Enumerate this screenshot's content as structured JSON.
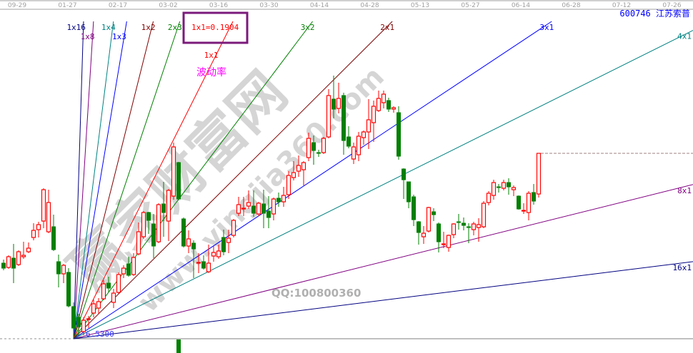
{
  "stock": {
    "code_name": "600746 江苏索普",
    "color": "#0000ff"
  },
  "annotation": {
    "box_label": "1x1=0.1904",
    "box_color": "#7b1a7b",
    "note": "波动率",
    "note_color": "#ff00ff",
    "origin_label": "6.5300",
    "qq": "QQ:100800360"
  },
  "watermark": {
    "cn": "赢家财富网",
    "url": "www.yingjia360.com"
  },
  "chart_data": {
    "type": "candlestick",
    "x_tick_labels": [
      "09-29",
      "01-27",
      "02-17",
      "03-02",
      "03-16",
      "03-30",
      "04-14",
      "04-28",
      "05-13",
      "05-27",
      "06-14",
      "06-28",
      "07-12",
      "07-26"
    ],
    "up_color": "#ff0000",
    "down_color": "#008000",
    "candles": [
      [
        8.65,
        8.75,
        8.45,
        8.51
      ],
      [
        8.53,
        8.87,
        8.49,
        8.83
      ],
      [
        8.79,
        9.19,
        8.09,
        8.51
      ],
      [
        8.61,
        9.01,
        8.57,
        8.97
      ],
      [
        8.83,
        9.25,
        8.77,
        8.87
      ],
      [
        8.97,
        9.23,
        8.93,
        9.07
      ],
      [
        9.37,
        9.77,
        9.29,
        9.57
      ],
      [
        9.59,
        9.81,
        9.37,
        9.73
      ],
      [
        9.83,
        10.75,
        9.63,
        10.71
      ],
      [
        9.53,
        10.71,
        9.49,
        10.35
      ],
      [
        9.67,
        10.01,
        8.99,
        9.03
      ],
      [
        8.69,
        8.89,
        7.97,
        8.35
      ],
      [
        8.35,
        8.63,
        8.09,
        8.59
      ],
      [
        8.39,
        8.51,
        7.41,
        7.45
      ],
      [
        7.43,
        7.55,
        6.53,
        6.83
      ],
      [
        7.13,
        7.23,
        6.63,
        6.87
      ],
      [
        6.73,
        7.13,
        6.63,
        7.05
      ],
      [
        7.07,
        7.17,
        6.83,
        7.09
      ],
      [
        7.25,
        7.63,
        7.13,
        7.51
      ],
      [
        7.39,
        7.67,
        7.23,
        7.57
      ],
      [
        7.65,
        8.17,
        7.61,
        8.07
      ],
      [
        8.09,
        8.27,
        7.83,
        7.95
      ],
      [
        7.55,
        7.93,
        7.39,
        7.81
      ],
      [
        7.83,
        8.39,
        7.79,
        8.33
      ],
      [
        8.35,
        8.59,
        8.23,
        8.51
      ],
      [
        8.63,
        8.83,
        8.27,
        8.31
      ],
      [
        8.33,
        8.93,
        8.29,
        8.81
      ],
      [
        8.91,
        9.79,
        8.87,
        9.53
      ],
      [
        9.39,
        10.11,
        9.33,
        10.07
      ],
      [
        10.07,
        10.09,
        9.47,
        9.85
      ],
      [
        9.75,
        10.03,
        8.79,
        9.13
      ],
      [
        9.25,
        10.33,
        9.21,
        10.29
      ],
      [
        10.31,
        10.93,
        9.39,
        10.07
      ],
      [
        9.83,
        10.73,
        9.27,
        10.69
      ],
      [
        10.53,
        12.03,
        10.43,
        11.91
      ],
      [
        11.47,
        11.49,
        10.41,
        10.45
      ],
      [
        9.89,
        9.93,
        9.09,
        9.13
      ],
      [
        9.13,
        9.57,
        8.93,
        9.33
      ],
      [
        9.21,
        9.29,
        8.23,
        9.05
      ],
      [
        8.67,
        8.93,
        8.37,
        8.67
      ],
      [
        8.69,
        8.87,
        8.47,
        8.51
      ],
      [
        8.41,
        9.17,
        8.37,
        8.65
      ],
      [
        8.85,
        9.13,
        8.69,
        8.95
      ],
      [
        8.83,
        9.17,
        8.77,
        8.99
      ],
      [
        9.37,
        9.59,
        8.87,
        8.97
      ],
      [
        9.23,
        9.59,
        8.93,
        9.35
      ],
      [
        9.43,
        9.89,
        9.37,
        9.85
      ],
      [
        10.05,
        10.51,
        9.97,
        10.29
      ],
      [
        10.19,
        10.51,
        9.97,
        10.19
      ],
      [
        10.25,
        10.69,
        10.17,
        10.35
      ],
      [
        10.25,
        10.69,
        9.95,
        10.05
      ],
      [
        10.03,
        10.37,
        9.97,
        10.33
      ],
      [
        10.31,
        10.71,
        9.63,
        10.05
      ],
      [
        10.11,
        10.53,
        9.63,
        9.93
      ],
      [
        10.03,
        10.49,
        9.85,
        10.45
      ],
      [
        10.47,
        10.63,
        10.23,
        10.37
      ],
      [
        10.37,
        10.79,
        10.23,
        10.55
      ],
      [
        10.57,
        11.23,
        10.45,
        11.11
      ],
      [
        11.05,
        11.51,
        10.97,
        11.19
      ],
      [
        11.23,
        11.67,
        11.07,
        11.39
      ],
      [
        11.27,
        11.51,
        10.83,
        11.47
      ],
      [
        11.61,
        12.31,
        11.51,
        12.15
      ],
      [
        12.03,
        12.23,
        11.41,
        11.81
      ],
      [
        11.75,
        11.83,
        11.63,
        11.74
      ],
      [
        11.75,
        12.19,
        11.71,
        12.15
      ],
      [
        12.19,
        13.53,
        12.15,
        13.35
      ],
      [
        13.25,
        13.91,
        12.71,
        12.97
      ],
      [
        12.99,
        13.71,
        12.85,
        13.27
      ],
      [
        13.35,
        13.43,
        11.69,
        12.09
      ],
      [
        12.19,
        12.49,
        11.87,
        11.93
      ],
      [
        11.57,
        12.03,
        11.43,
        11.91
      ],
      [
        11.69,
        12.33,
        11.51,
        12.21
      ],
      [
        12.17,
        12.37,
        11.97,
        12.33
      ],
      [
        12.33,
        13.25,
        11.85,
        12.67
      ],
      [
        12.59,
        13.21,
        12.05,
        13.05
      ],
      [
        12.93,
        13.49,
        12.89,
        13.27
      ],
      [
        13.15,
        13.49,
        12.99,
        13.39
      ],
      [
        13.21,
        13.29,
        12.89,
        12.97
      ],
      [
        12.97,
        13.05,
        12.87,
        13.01
      ],
      [
        12.87,
        13.05,
        11.55,
        11.65
      ],
      [
        11.29,
        11.31,
        10.45,
        10.99
      ],
      [
        10.93,
        10.93,
        10.19,
        10.37
      ],
      [
        10.51,
        10.57,
        9.69,
        9.87
      ],
      [
        9.81,
        9.83,
        9.17,
        9.51
      ],
      [
        9.39,
        9.69,
        9.19,
        9.49
      ],
      [
        9.55,
        10.23,
        9.51,
        10.21
      ],
      [
        10.09,
        10.19,
        9.83,
        10.01
      ],
      [
        9.75,
        9.79,
        8.95,
        9.25
      ],
      [
        9.19,
        9.53,
        9.07,
        9.19
      ],
      [
        9.09,
        9.45,
        8.97,
        9.43
      ],
      [
        9.45,
        9.77,
        9.35,
        9.75
      ],
      [
        9.81,
        10.03,
        9.59,
        9.8
      ],
      [
        9.77,
        9.93,
        9.57,
        9.71
      ],
      [
        9.67,
        9.77,
        9.21,
        9.66
      ],
      [
        9.59,
        9.81,
        9.43,
        9.75
      ],
      [
        9.65,
        9.91,
        9.25,
        9.73
      ],
      [
        9.67,
        10.39,
        9.63,
        10.33
      ],
      [
        10.35,
        10.67,
        10.27,
        10.61
      ],
      [
        10.55,
        10.99,
        10.43,
        10.91
      ],
      [
        10.79,
        10.87,
        10.63,
        10.78
      ],
      [
        10.75,
        10.99,
        10.69,
        10.91
      ],
      [
        10.91,
        11.03,
        10.57,
        10.79
      ],
      [
        10.71,
        10.83,
        10.53,
        10.77
      ],
      [
        10.53,
        10.55,
        10.15,
        10.17
      ],
      [
        10.13,
        10.33,
        10.03,
        10.13
      ],
      [
        10.07,
        10.67,
        9.85,
        10.61
      ],
      [
        10.63,
        10.87,
        10.29,
        10.39
      ],
      [
        10.59,
        11.73,
        10.49,
        11.73
      ]
    ],
    "last_close_line": 11.73,
    "gann_fan": {
      "origin_bar": 14,
      "origin_price": 6.53,
      "lines": [
        {
          "label": "1x16",
          "ratio": 16,
          "color": "#000080"
        },
        {
          "label": "1x8",
          "ratio": 8,
          "color": "#800080"
        },
        {
          "label": "1x4",
          "ratio": 4,
          "color": "#008080"
        },
        {
          "label": "1x3",
          "ratio": 3,
          "color": "#0000ff"
        },
        {
          "label": "1x2",
          "ratio": 2,
          "color": "#800000"
        },
        {
          "label": "2x3",
          "ratio": 1.5,
          "color": "#008000"
        },
        {
          "label": "1x1",
          "ratio": 1,
          "color": "#ff0000"
        },
        {
          "label": "3x2",
          "ratio": 0.6667,
          "color": "#008000"
        },
        {
          "label": "2x1",
          "ratio": 0.5,
          "color": "#800000"
        },
        {
          "label": "3x1",
          "ratio": 0.3333,
          "color": "#0000ff"
        },
        {
          "label": "4x1",
          "ratio": 0.25,
          "color": "#008080"
        },
        {
          "label": "8x1",
          "ratio": 0.125,
          "color": "#800080"
        },
        {
          "label": "16x1",
          "ratio": 0.0625,
          "color": "#000080"
        }
      ]
    }
  }
}
